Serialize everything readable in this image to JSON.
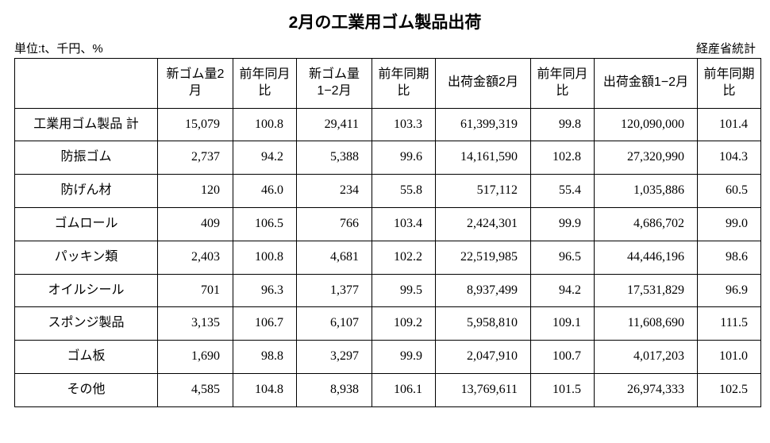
{
  "title": "2月の工業用ゴム製品出荷",
  "unit_label": "単位:t、千円、%",
  "source_label": "経産省統計",
  "table": {
    "columns": [
      "",
      "新ゴム量2月",
      "前年同月比",
      "新ゴム量1−2月",
      "前年同期比",
      "出荷金額2月",
      "前年同月比",
      "出荷金額1−2月",
      "前年同期比"
    ],
    "rows": [
      {
        "label": "工業用ゴム製品 計",
        "values": [
          "15,079",
          "100.8",
          "29,411",
          "103.3",
          "61,399,319",
          "99.8",
          "120,090,000",
          "101.4"
        ]
      },
      {
        "label": "防振ゴム",
        "values": [
          "2,737",
          "94.2",
          "5,388",
          "99.6",
          "14,161,590",
          "102.8",
          "27,320,990",
          "104.3"
        ]
      },
      {
        "label": "防げん材",
        "values": [
          "120",
          "46.0",
          "234",
          "55.8",
          "517,112",
          "55.4",
          "1,035,886",
          "60.5"
        ]
      },
      {
        "label": "ゴムロール",
        "values": [
          "409",
          "106.5",
          "766",
          "103.4",
          "2,424,301",
          "99.9",
          "4,686,702",
          "99.0"
        ]
      },
      {
        "label": "パッキン類",
        "values": [
          "2,403",
          "100.8",
          "4,681",
          "102.2",
          "22,519,985",
          "96.5",
          "44,446,196",
          "98.6"
        ]
      },
      {
        "label": "オイルシール",
        "values": [
          "701",
          "96.3",
          "1,377",
          "99.5",
          "8,937,499",
          "94.2",
          "17,531,829",
          "96.9"
        ]
      },
      {
        "label": "スポンジ製品",
        "values": [
          "3,135",
          "106.7",
          "6,107",
          "109.2",
          "5,958,810",
          "109.1",
          "11,608,690",
          "111.5"
        ]
      },
      {
        "label": "ゴム板",
        "values": [
          "1,690",
          "98.8",
          "3,297",
          "99.9",
          "2,047,910",
          "100.7",
          "4,017,203",
          "101.0"
        ]
      },
      {
        "label": "その他",
        "values": [
          "4,585",
          "104.8",
          "8,938",
          "106.1",
          "13,769,611",
          "101.5",
          "26,974,333",
          "102.5"
        ]
      }
    ],
    "colors": {
      "border": "#000000",
      "background": "#ffffff",
      "text": "#000000"
    },
    "fonts": {
      "title_size_pt": 16,
      "cell_size_pt": 12
    }
  }
}
